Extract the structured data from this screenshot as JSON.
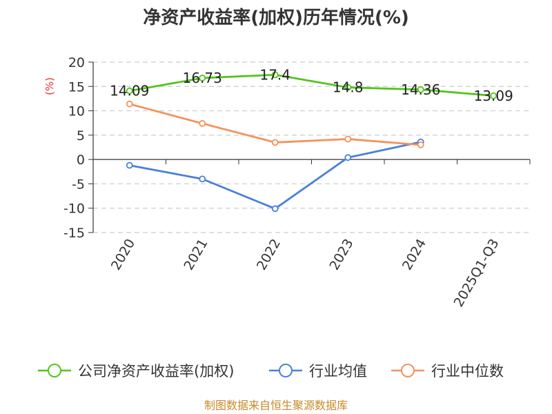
{
  "title": "净资产收益率(加权)历年情况(%)",
  "source": "制图数据来自恒生聚源数据库",
  "colors": {
    "title": "#333333",
    "unit": "#e8302e",
    "source": "#c8892a",
    "grid": "#cccccc",
    "axis": "#333333"
  },
  "chart_data": {
    "type": "line",
    "title": "净资产收益率(加权)历年情况(%)",
    "ylabel": "(%)",
    "xlabel": "",
    "categories": [
      "2020",
      "2021",
      "2022",
      "2023",
      "2024",
      "2025Q1-Q3"
    ],
    "ylim": [
      -15,
      20
    ],
    "yticks": [
      20,
      15,
      10,
      5,
      0,
      -5,
      -10,
      -15
    ],
    "grid": true,
    "legend_position": "bottom",
    "series": [
      {
        "name": "公司净资产收益率(加权)",
        "color": "#52c41a",
        "values": [
          14.09,
          16.73,
          17.4,
          14.8,
          14.36,
          13.09
        ],
        "labels": [
          "14.09",
          "16.73",
          "17.4",
          "14.8",
          "14.36",
          "13.09"
        ]
      },
      {
        "name": "行业均值",
        "color": "#4a7fdc",
        "values": [
          -1.2,
          -4.0,
          -10.1,
          0.4,
          3.6,
          null
        ]
      },
      {
        "name": "行业中位数",
        "color": "#f5915a",
        "values": [
          11.4,
          7.4,
          3.5,
          4.2,
          3.0,
          null
        ]
      }
    ]
  }
}
